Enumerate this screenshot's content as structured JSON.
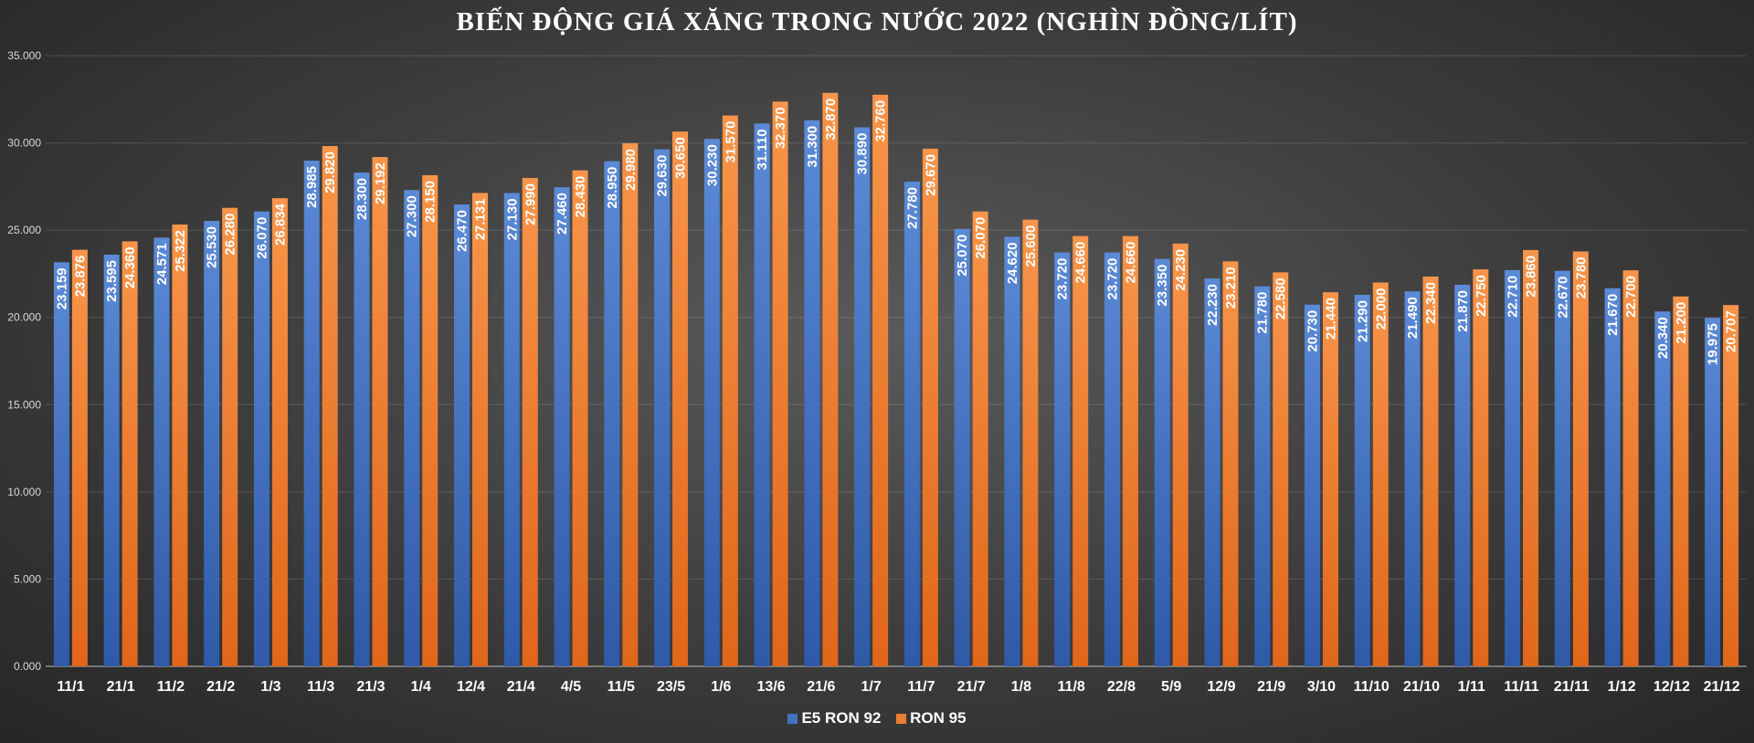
{
  "chart_data": {
    "type": "bar",
    "title": "BIẾN ĐỘNG GIÁ XĂNG TRONG NƯỚC 2022 (NGHÌN ĐỒNG/LÍT)",
    "categories": [
      "11/1",
      "21/1",
      "11/2",
      "21/2",
      "1/3",
      "11/3",
      "21/3",
      "1/4",
      "12/4",
      "21/4",
      "4/5",
      "11/5",
      "23/5",
      "1/6",
      "13/6",
      "21/6",
      "1/7",
      "11/7",
      "21/7",
      "1/8",
      "11/8",
      "22/8",
      "5/9",
      "12/9",
      "21/9",
      "3/10",
      "11/10",
      "21/10",
      "1/11",
      "11/11",
      "21/11",
      "1/12",
      "12/12",
      "21/12"
    ],
    "series": [
      {
        "name": "E5 RON 92",
        "color": "#4472c4",
        "values": [
          23159,
          23595,
          24571,
          25530,
          26070,
          28985,
          28300,
          27300,
          26470,
          27130,
          27460,
          28950,
          29630,
          30230,
          31110,
          31300,
          30890,
          27780,
          25070,
          24620,
          23720,
          23720,
          23350,
          22230,
          21780,
          20730,
          21290,
          21490,
          21870,
          22710,
          22670,
          21670,
          20340,
          19975
        ],
        "labels": [
          "23.159",
          "23.595",
          "24.571",
          "25.530",
          "26.070",
          "28.985",
          "28.300",
          "27.300",
          "26.470",
          "27.130",
          "27.460",
          "28.950",
          "29.630",
          "30.230",
          "31.110",
          "31.300",
          "30.890",
          "27.780",
          "25.070",
          "24.620",
          "23.720",
          "23.720",
          "23.350",
          "22.230",
          "21.780",
          "20.730",
          "21.290",
          "21.490",
          "21.870",
          "22.710",
          "22.670",
          "21.670",
          "20.340",
          "19.975"
        ]
      },
      {
        "name": "RON 95",
        "color": "#ed7d31",
        "values": [
          23876,
          24360,
          25322,
          26280,
          26834,
          29820,
          29192,
          28150,
          27131,
          27990,
          28430,
          29980,
          30650,
          31570,
          32370,
          32870,
          32760,
          29670,
          26070,
          25600,
          24660,
          24660,
          24230,
          23210,
          22580,
          21440,
          22000,
          22340,
          22750,
          23860,
          23780,
          22700,
          21200,
          20707
        ],
        "labels": [
          "23.876",
          "24.360",
          "25.322",
          "26.280",
          "26.834",
          "29.820",
          "29.192",
          "28.150",
          "27.131",
          "27.990",
          "28.430",
          "29.980",
          "30.650",
          "31.570",
          "32.370",
          "32.870",
          "32.760",
          "29.670",
          "26.070",
          "25.600",
          "24.660",
          "24.660",
          "24.230",
          "23.210",
          "22.580",
          "21.440",
          "22.000",
          "22.340",
          "22.750",
          "23.860",
          "23.780",
          "22.700",
          "21.200",
          "20.707"
        ]
      }
    ],
    "ylim": [
      0,
      35000
    ],
    "yticks": [
      0,
      5000,
      10000,
      15000,
      20000,
      25000,
      30000,
      35000
    ],
    "ytick_labels": [
      "0.000",
      "5.000",
      "10.000",
      "15.000",
      "20.000",
      "25.000",
      "30.000",
      "35.000"
    ],
    "grid": true,
    "legend": "bottom-center",
    "xlabel": "",
    "ylabel": ""
  }
}
